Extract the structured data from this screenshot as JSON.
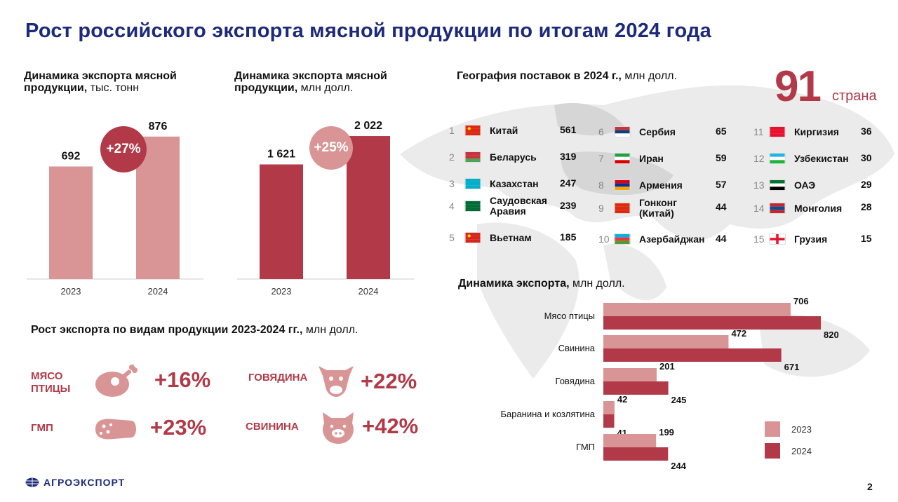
{
  "title": "Рост российского экспорта мясной продукции по итогам 2024 года",
  "colors": {
    "light": "#d99595",
    "dark": "#b23a48",
    "navy": "#1d2a7a"
  },
  "volume_chart": {
    "subtitle_bold": "Динамика экспорта мясной продукции,",
    "subtitle_rest": " тыс. тонн",
    "growth": "+27%"
  },
  "value_chart": {
    "subtitle_bold": "Динамика экспорта мясной продукции,",
    "subtitle_rest": " млн долл.",
    "growth": "+25%"
  },
  "geography": {
    "title_bold": "География поставок в 2024 г.,",
    "title_rest": " млн долл.",
    "count": "91",
    "count_label": "страна",
    "columns": [
      [
        {
          "num": "1",
          "name": "Китай",
          "value": "561",
          "flag": "cn"
        },
        {
          "num": "2",
          "name": "Беларусь",
          "value": "319",
          "flag": "by"
        },
        {
          "num": "3",
          "name": "Казахстан",
          "value": "247",
          "flag": "kz"
        },
        {
          "num": "4",
          "name": "Саудовская Аравия",
          "value": "239",
          "flag": "sa"
        },
        {
          "num": "5",
          "name": "Вьетнам",
          "value": "185",
          "flag": "vn"
        }
      ],
      [
        {
          "num": "6",
          "name": "Сербия",
          "value": "65",
          "flag": "rs"
        },
        {
          "num": "7",
          "name": "Иран",
          "value": "59",
          "flag": "ir"
        },
        {
          "num": "8",
          "name": "Армения",
          "value": "57",
          "flag": "am"
        },
        {
          "num": "9",
          "name": "Гонконг (Китай)",
          "value": "44",
          "flag": "hk"
        },
        {
          "num": "10",
          "name": "Азербайджан",
          "value": "44",
          "flag": "az"
        }
      ],
      [
        {
          "num": "11",
          "name": "Киргизия",
          "value": "36",
          "flag": "kg"
        },
        {
          "num": "12",
          "name": "Узбекистан",
          "value": "30",
          "flag": "uz"
        },
        {
          "num": "13",
          "name": "ОАЭ",
          "value": "29",
          "flag": "ae"
        },
        {
          "num": "14",
          "name": "Монголия",
          "value": "28",
          "flag": "mn"
        },
        {
          "num": "15",
          "name": "Грузия",
          "value": "15",
          "flag": "ge"
        }
      ]
    ]
  },
  "products": {
    "title_bold": "Рост экспорта по видам продукции 2023-2024 гг.,",
    "title_rest": " млн долл.",
    "items": [
      {
        "label": "МЯСО ПТИЦЫ",
        "pct": "+16%",
        "icon": "chicken-leg-icon"
      },
      {
        "label": "ГОВЯДИНА",
        "pct": "+22%",
        "icon": "cow-icon"
      },
      {
        "label": "ГМП",
        "pct": "+23%",
        "icon": "sausage-icon"
      },
      {
        "label": "СВИНИНА",
        "pct": "+42%",
        "icon": "pig-icon"
      }
    ]
  },
  "dynamics": {
    "title_bold": "Динамика экспорта,",
    "title_rest": " млн долл."
  },
  "logo_text": "АГРОЭКСПОРТ",
  "page_number": "2",
  "chart_data": [
    {
      "type": "bar",
      "title": "Динамика экспорта мясной продукции, тыс. тонн",
      "categories": [
        "2023",
        "2024"
      ],
      "values": [
        692,
        876
      ],
      "value_labels": [
        "692",
        "876"
      ],
      "ylim": [
        0,
        1000
      ],
      "annotation": "+27%"
    },
    {
      "type": "bar",
      "title": "Динамика экспорта мясной продукции, млн долл.",
      "categories": [
        "2023",
        "2024"
      ],
      "values": [
        1621,
        2022
      ],
      "value_labels": [
        "1 621",
        "2 022"
      ],
      "ylim": [
        0,
        2300
      ],
      "annotation": "+25%"
    },
    {
      "type": "bar",
      "orientation": "horizontal",
      "title": "Динамика экспорта, млн долл.",
      "categories": [
        "Мясо птицы",
        "Свинина",
        "Говядина",
        "Баранина и козлятина",
        "ГМП"
      ],
      "series": [
        {
          "name": "2023",
          "values": [
            706,
            472,
            201,
            42,
            199
          ]
        },
        {
          "name": "2024",
          "values": [
            820,
            671,
            245,
            41,
            244
          ]
        }
      ],
      "xlim": [
        0,
        820
      ],
      "legend": "bottom-right"
    }
  ]
}
